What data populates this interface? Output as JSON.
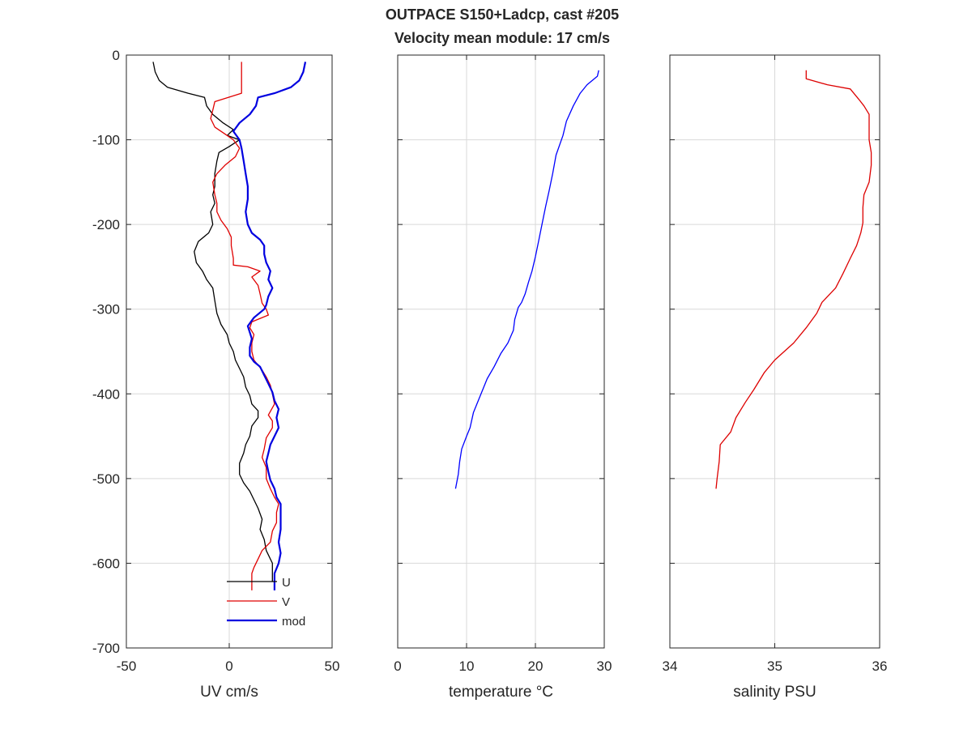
{
  "title_line1": "OUTPACE S150+Ladcp, cast #205",
  "title_line2": "Velocity mean module:  17 cm/s",
  "colors": {
    "U": "#000000",
    "V": "#e00000",
    "mod": "#0000e0",
    "temperature": "#0000ff",
    "salinity": "#dd0000",
    "grid": "#d9d9d9",
    "axis": "#262626"
  },
  "chart_data": [
    {
      "type": "line",
      "xlabel": "UV cm/s",
      "ylabel": "",
      "xlim": [
        -50,
        50
      ],
      "ylim": [
        -700,
        0
      ],
      "xticks": [
        -50,
        0,
        50
      ],
      "yticks": [
        0,
        -100,
        -200,
        -300,
        -400,
        -500,
        -600,
        -700
      ],
      "grid": true,
      "legend": "bottom-right",
      "series": [
        {
          "name": "U",
          "points": [
            [
              -37,
              -8
            ],
            [
              -36,
              -20
            ],
            [
              -34,
              -30
            ],
            [
              -30,
              -38
            ],
            [
              -20,
              -45
            ],
            [
              -12,
              -50
            ],
            [
              -11,
              -60
            ],
            [
              -8,
              -70
            ],
            [
              -3,
              -80
            ],
            [
              2,
              -88
            ],
            [
              -1,
              -95
            ],
            [
              5,
              -100
            ],
            [
              0,
              -108
            ],
            [
              -5,
              -115
            ],
            [
              -6,
              -125
            ],
            [
              -7,
              -140
            ],
            [
              -7,
              -155
            ],
            [
              -8,
              -165
            ],
            [
              -7,
              -175
            ],
            [
              -9,
              -185
            ],
            [
              -8,
              -200
            ],
            [
              -10,
              -210
            ],
            [
              -15,
              -220
            ],
            [
              -17,
              -232
            ],
            [
              -16,
              -245
            ],
            [
              -13,
              -255
            ],
            [
              -11,
              -265
            ],
            [
              -8,
              -275
            ],
            [
              -7,
              -290
            ],
            [
              -6,
              -305
            ],
            [
              -4,
              -318
            ],
            [
              -1,
              -330
            ],
            [
              0,
              -340
            ],
            [
              2,
              -350
            ],
            [
              3,
              -360
            ],
            [
              5,
              -370
            ],
            [
              7,
              -380
            ],
            [
              8,
              -392
            ],
            [
              10,
              -402
            ],
            [
              11,
              -412
            ],
            [
              14,
              -420
            ],
            [
              14,
              -428
            ],
            [
              11,
              -438
            ],
            [
              10,
              -450
            ],
            [
              8,
              -460
            ],
            [
              7,
              -470
            ],
            [
              5,
              -482
            ],
            [
              5,
              -495
            ],
            [
              7,
              -505
            ],
            [
              10,
              -515
            ],
            [
              12,
              -525
            ],
            [
              14,
              -535
            ],
            [
              16,
              -548
            ],
            [
              15,
              -560
            ],
            [
              17,
              -572
            ],
            [
              18,
              -585
            ],
            [
              21,
              -600
            ],
            [
              21,
              -612
            ],
            [
              21,
              -622
            ]
          ]
        },
        {
          "name": "V",
          "points": [
            [
              6,
              -8
            ],
            [
              6,
              -25
            ],
            [
              6,
              -45
            ],
            [
              -7,
              -55
            ],
            [
              -8,
              -65
            ],
            [
              -9,
              -75
            ],
            [
              -7,
              -85
            ],
            [
              -1,
              -95
            ],
            [
              2,
              -100
            ],
            [
              5,
              -110
            ],
            [
              3,
              -120
            ],
            [
              -2,
              -130
            ],
            [
              -6,
              -140
            ],
            [
              -8,
              -150
            ],
            [
              -7,
              -165
            ],
            [
              -6,
              -175
            ],
            [
              -6,
              -185
            ],
            [
              -4,
              -195
            ],
            [
              -1,
              -205
            ],
            [
              1,
              -215
            ],
            [
              1,
              -225
            ],
            [
              2,
              -240
            ],
            [
              2,
              -248
            ],
            [
              9,
              -250
            ],
            [
              15,
              -255
            ],
            [
              11,
              -262
            ],
            [
              14,
              -272
            ],
            [
              15,
              -282
            ],
            [
              16,
              -293
            ],
            [
              18,
              -300
            ],
            [
              19,
              -307
            ],
            [
              11,
              -315
            ],
            [
              10,
              -322
            ],
            [
              12,
              -330
            ],
            [
              11,
              -340
            ],
            [
              11,
              -350
            ],
            [
              12,
              -360
            ],
            [
              16,
              -372
            ],
            [
              18,
              -380
            ],
            [
              20,
              -390
            ],
            [
              21,
              -400
            ],
            [
              22,
              -412
            ],
            [
              19,
              -425
            ],
            [
              21,
              -432
            ],
            [
              21,
              -440
            ],
            [
              18,
              -452
            ],
            [
              17,
              -465
            ],
            [
              16,
              -475
            ],
            [
              18,
              -487
            ],
            [
              18,
              -500
            ],
            [
              20,
              -512
            ],
            [
              22,
              -522
            ],
            [
              24,
              -530
            ],
            [
              23,
              -540
            ],
            [
              23,
              -552
            ],
            [
              21,
              -562
            ],
            [
              20,
              -575
            ],
            [
              16,
              -585
            ],
            [
              14,
              -595
            ],
            [
              12,
              -605
            ],
            [
              11,
              -612
            ],
            [
              11,
              -622
            ],
            [
              11,
              -632
            ]
          ]
        },
        {
          "name": "mod",
          "points": [
            [
              37,
              -8
            ],
            [
              36,
              -20
            ],
            [
              34,
              -30
            ],
            [
              30,
              -38
            ],
            [
              22,
              -45
            ],
            [
              14,
              -50
            ],
            [
              13,
              -60
            ],
            [
              10,
              -70
            ],
            [
              5,
              -80
            ],
            [
              2,
              -90
            ],
            [
              5,
              -100
            ],
            [
              6,
              -110
            ],
            [
              7,
              -125
            ],
            [
              8,
              -140
            ],
            [
              9,
              -155
            ],
            [
              9,
              -170
            ],
            [
              8,
              -185
            ],
            [
              9,
              -200
            ],
            [
              11,
              -210
            ],
            [
              15,
              -218
            ],
            [
              17,
              -225
            ],
            [
              17,
              -235
            ],
            [
              18,
              -245
            ],
            [
              20,
              -255
            ],
            [
              19,
              -265
            ],
            [
              21,
              -275
            ],
            [
              19,
              -285
            ],
            [
              18,
              -295
            ],
            [
              17,
              -300
            ],
            [
              12,
              -310
            ],
            [
              9,
              -320
            ],
            [
              11,
              -335
            ],
            [
              10,
              -345
            ],
            [
              10,
              -355
            ],
            [
              12,
              -362
            ],
            [
              15,
              -368
            ],
            [
              17,
              -378
            ],
            [
              19,
              -388
            ],
            [
              21,
              -398
            ],
            [
              22,
              -408
            ],
            [
              24,
              -418
            ],
            [
              23,
              -428
            ],
            [
              24,
              -440
            ],
            [
              22,
              -450
            ],
            [
              20,
              -460
            ],
            [
              19,
              -470
            ],
            [
              18,
              -480
            ],
            [
              19,
              -492
            ],
            [
              20,
              -502
            ],
            [
              22,
              -512
            ],
            [
              23,
              -522
            ],
            [
              25,
              -530
            ],
            [
              25,
              -545
            ],
            [
              25,
              -560
            ],
            [
              24,
              -575
            ],
            [
              25,
              -588
            ],
            [
              24,
              -600
            ],
            [
              22,
              -612
            ],
            [
              22,
              -622
            ],
            [
              22,
              -632
            ]
          ]
        }
      ]
    },
    {
      "type": "line",
      "xlabel": "temperature °C",
      "ylabel": "",
      "xlim": [
        0,
        30
      ],
      "ylim": [
        -700,
        0
      ],
      "xticks": [
        0,
        10,
        20,
        30
      ],
      "grid": true,
      "series": [
        {
          "name": "",
          "points": [
            [
              29.2,
              -18
            ],
            [
              29.0,
              -25
            ],
            [
              27.5,
              -35
            ],
            [
              26.5,
              -45
            ],
            [
              25.5,
              -60
            ],
            [
              24.5,
              -78
            ],
            [
              24.0,
              -95
            ],
            [
              23.0,
              -118
            ],
            [
              22.5,
              -140
            ],
            [
              22.0,
              -160
            ],
            [
              21.5,
              -178
            ],
            [
              21.0,
              -198
            ],
            [
              20.5,
              -218
            ],
            [
              20.0,
              -238
            ],
            [
              19.5,
              -255
            ],
            [
              19.0,
              -268
            ],
            [
              18.5,
              -282
            ],
            [
              18.0,
              -292
            ],
            [
              17.5,
              -298
            ],
            [
              17.0,
              -312
            ],
            [
              16.8,
              -325
            ],
            [
              16.0,
              -340
            ],
            [
              15.0,
              -352
            ],
            [
              14.0,
              -368
            ],
            [
              13.0,
              -382
            ],
            [
              12.0,
              -402
            ],
            [
              11.0,
              -422
            ],
            [
              10.5,
              -440
            ],
            [
              10.0,
              -450
            ],
            [
              9.3,
              -465
            ],
            [
              9.0,
              -480
            ],
            [
              8.8,
              -495
            ],
            [
              8.4,
              -512
            ]
          ]
        }
      ]
    },
    {
      "type": "line",
      "xlabel": "salinity PSU",
      "ylabel": "",
      "xlim": [
        34,
        36
      ],
      "ylim": [
        -700,
        0
      ],
      "xticks": [
        34,
        35,
        36
      ],
      "grid": true,
      "series": [
        {
          "name": "",
          "points": [
            [
              35.3,
              -18
            ],
            [
              35.3,
              -28
            ],
            [
              35.5,
              -35
            ],
            [
              35.72,
              -40
            ],
            [
              35.8,
              -52
            ],
            [
              35.85,
              -60
            ],
            [
              35.9,
              -70
            ],
            [
              35.9,
              -85
            ],
            [
              35.9,
              -100
            ],
            [
              35.92,
              -115
            ],
            [
              35.92,
              -130
            ],
            [
              35.9,
              -150
            ],
            [
              35.85,
              -165
            ],
            [
              35.84,
              -180
            ],
            [
              35.84,
              -198
            ],
            [
              35.82,
              -210
            ],
            [
              35.78,
              -225
            ],
            [
              35.72,
              -240
            ],
            [
              35.65,
              -258
            ],
            [
              35.58,
              -275
            ],
            [
              35.45,
              -292
            ],
            [
              35.4,
              -305
            ],
            [
              35.3,
              -322
            ],
            [
              35.18,
              -340
            ],
            [
              35.0,
              -360
            ],
            [
              34.9,
              -375
            ],
            [
              34.8,
              -395
            ],
            [
              34.72,
              -410
            ],
            [
              34.63,
              -428
            ],
            [
              34.58,
              -445
            ],
            [
              34.48,
              -460
            ],
            [
              34.47,
              -480
            ],
            [
              34.45,
              -500
            ],
            [
              34.44,
              -512
            ]
          ]
        }
      ]
    }
  ],
  "legend": {
    "U": "U",
    "V": "V",
    "mod": "mod"
  }
}
